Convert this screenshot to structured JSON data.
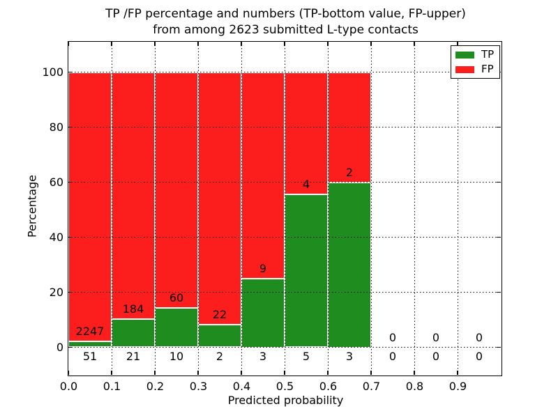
{
  "chart_data": {
    "type": "bar",
    "stacked": true,
    "normalization": "each bin stacked to 100 percent (TP+FP)",
    "title": "TP /FP percentage and numbers (TP-bottom value, FP-upper) from among 2623 submitted L-type contacts",
    "title_lines": [
      "TP /FP percentage and numbers (TP-bottom value, FP-upper)",
      "from among 2623 submitted L-type contacts"
    ],
    "xlabel": "Predicted probability",
    "ylabel": "Percentage",
    "xlim": [
      0.0,
      1.0
    ],
    "ylim": [
      -11,
      111
    ],
    "x_tick_labels": [
      "0.0",
      "0.1",
      "0.2",
      "0.3",
      "0.4",
      "0.5",
      "0.6",
      "0.7",
      "0.8",
      "0.9"
    ],
    "y_ticks": [
      0,
      20,
      40,
      60,
      80,
      100
    ],
    "grid": "dotted black, horizontal and vertical, drawn over bars",
    "legend": {
      "position": "upper right",
      "items": [
        {
          "label": "TP",
          "color": "#1e8c1e"
        },
        {
          "label": "FP",
          "color": "#fc1d1d"
        }
      ]
    },
    "colors": {
      "tp": "#1e8c1e",
      "fp": "#fc1d1d",
      "bar_edge": "#ffffff",
      "grid": "#000000",
      "text": "#000000",
      "background": "#ffffff"
    },
    "bins": [
      {
        "x_start": 0.0,
        "x_end": 0.1,
        "tp": 51,
        "fp": 2247
      },
      {
        "x_start": 0.1,
        "x_end": 0.2,
        "tp": 21,
        "fp": 184
      },
      {
        "x_start": 0.2,
        "x_end": 0.3,
        "tp": 10,
        "fp": 60
      },
      {
        "x_start": 0.3,
        "x_end": 0.4,
        "tp": 2,
        "fp": 22
      },
      {
        "x_start": 0.4,
        "x_end": 0.5,
        "tp": 3,
        "fp": 9
      },
      {
        "x_start": 0.5,
        "x_end": 0.6,
        "tp": 5,
        "fp": 4
      },
      {
        "x_start": 0.6,
        "x_end": 0.7,
        "tp": 3,
        "fp": 2
      },
      {
        "x_start": 0.7,
        "x_end": 0.8,
        "tp": 0,
        "fp": 0
      },
      {
        "x_start": 0.8,
        "x_end": 0.9,
        "tp": 0,
        "fp": 0
      },
      {
        "x_start": 0.9,
        "x_end": 1.0,
        "tp": 0,
        "fp": 0
      }
    ]
  }
}
